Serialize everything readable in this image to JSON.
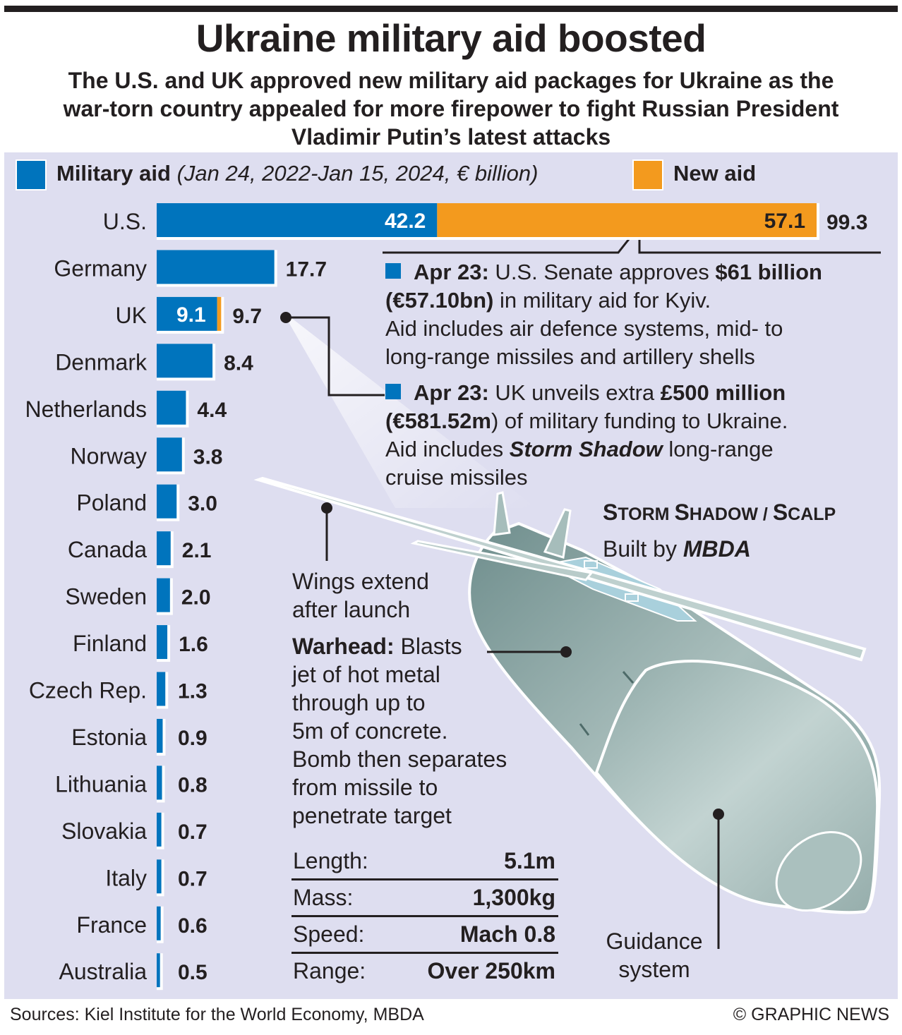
{
  "header": {
    "title": "Ukraine military aid boosted",
    "subtitle_lines": [
      "The U.S. and UK approved new military aid packages for Ukraine as the",
      "war-torn country appealed for more firepower to fight Russian President",
      "Vladimir Putin’s latest attacks"
    ]
  },
  "legend": {
    "military_label": "Military aid",
    "military_note": "(Jan 24, 2022-Jan 15, 2024, € billion)",
    "new_label": "New aid"
  },
  "colors": {
    "military": "#0074bd",
    "new": "#f39a1e",
    "panel": "#dedef0",
    "ink": "#231f20"
  },
  "chart_data": {
    "type": "bar",
    "orientation": "horizontal",
    "stacked": true,
    "title": "Military aid (Jan 24, 2022-Jan 15, 2024, € billion)",
    "categories": [
      "U.S.",
      "Germany",
      "UK",
      "Denmark",
      "Netherlands",
      "Norway",
      "Poland",
      "Canada",
      "Sweden",
      "Finland",
      "Czech Rep.",
      "Estonia",
      "Lithuania",
      "Slovakia",
      "Italy",
      "France",
      "Australia"
    ],
    "series": [
      {
        "name": "Military aid",
        "values": [
          42.2,
          17.7,
          9.1,
          8.4,
          4.4,
          3.8,
          3.0,
          2.1,
          2.0,
          1.6,
          1.3,
          0.9,
          0.8,
          0.7,
          0.7,
          0.6,
          0.5
        ]
      },
      {
        "name": "New aid",
        "values": [
          57.1,
          0,
          0.6,
          0,
          0,
          0,
          0,
          0,
          0,
          0,
          0,
          0,
          0,
          0,
          0,
          0,
          0
        ]
      }
    ],
    "total_labels": [
      "99.3",
      "17.7",
      "9.7",
      "8.4",
      "4.4",
      "3.8",
      "3.0",
      "2.1",
      "2.0",
      "1.6",
      "1.3",
      "0.9",
      "0.8",
      "0.7",
      "0.7",
      "0.6",
      "0.5"
    ],
    "inner_labels": {
      "0": [
        "42.2",
        "57.1"
      ],
      "2": [
        "9.1",
        ""
      ]
    },
    "xlim": [
      0,
      99.3
    ]
  },
  "notes": {
    "us": {
      "date": "Apr 23:",
      "l1_text": " U.S. Senate approves ",
      "l1_bold": "$61 billion",
      "l2_bold": "(€57.10bn)",
      "l2_text": " in military aid for Kyiv.",
      "l3": "Aid includes air defence systems, mid- to",
      "l4": "long-range missiles and artillery shells"
    },
    "uk": {
      "date": "Apr 23:",
      "l1_text": " UK unveils extra ",
      "l1_bold": "£500 million",
      "l2_bold": "(€581.52m",
      "l2_text": ") of military funding to Ukraine.",
      "l3_pre": "Aid includes ",
      "l3_bold": "Storm Shadow",
      "l3_post": " long-range",
      "l4": "cruise missiles"
    }
  },
  "missile": {
    "name_a": "S",
    "name_b": "TORM ",
    "name_c": "S",
    "name_d": "HADOW / ",
    "name_e": "S",
    "name_f": "CALP",
    "builder_pre": "Built by ",
    "builder": "MBDA",
    "wings": [
      "Wings extend",
      "after launch"
    ],
    "warhead_bold": "Warhead:",
    "warhead_l1": " Blasts",
    "warhead_lines": [
      "jet of hot metal",
      "through up to",
      "5m of concrete.",
      "Bomb then separates",
      "from missile to",
      "penetrate target"
    ],
    "guidance": [
      "Guidance",
      "system"
    ],
    "specs": [
      {
        "label": "Length:",
        "value": "5.1m"
      },
      {
        "label": "Mass:",
        "value": "1,300kg"
      },
      {
        "label": "Speed:",
        "value": "Mach 0.8"
      },
      {
        "label": "Range:",
        "value": "Over 250km"
      }
    ]
  },
  "footer": {
    "sources": "Sources: Kiel Institute for the World Economy, MBDA",
    "credit": "© GRAPHIC NEWS"
  }
}
